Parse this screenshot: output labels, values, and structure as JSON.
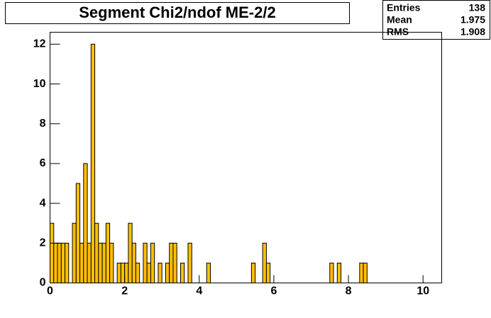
{
  "chart_data": {
    "type": "histogram",
    "title": "Segment Chi2/ndof ME-2/2",
    "stats": {
      "labels": [
        "Entries",
        "Mean",
        "RMS"
      ],
      "values": [
        138,
        1.975,
        1.908
      ]
    },
    "bins": [
      0,
      0.1,
      0.2,
      0.3,
      0.4,
      0.5,
      0.6,
      0.7,
      0.8,
      0.9,
      1,
      1.1,
      1.2,
      1.3,
      1.4,
      1.5,
      1.6,
      1.7,
      1.8,
      1.9,
      2,
      2.1,
      2.2,
      2.3,
      2.4,
      2.5,
      2.6,
      2.7,
      2.8,
      2.9,
      3,
      3.1,
      3.2,
      3.3,
      3.4,
      3.5,
      3.6,
      3.7,
      3.8,
      3.9,
      4,
      4.1,
      4.2,
      4.3,
      4.4,
      4.5,
      4.6,
      4.7,
      4.8,
      4.9,
      5,
      5.1,
      5.2,
      5.3,
      5.4,
      5.5,
      5.6,
      5.7,
      5.8,
      5.9,
      6,
      6.1,
      6.2,
      6.3,
      6.4,
      6.5,
      6.6,
      6.7,
      6.8,
      6.9,
      7,
      7.1,
      7.2,
      7.3,
      7.4,
      7.5,
      7.6,
      7.7,
      7.8,
      7.9,
      8,
      8.1,
      8.2,
      8.3,
      8.4,
      8.5,
      8.6,
      8.7,
      8.8,
      8.9,
      9,
      9.1,
      9.2,
      9.3,
      9.4,
      9.5,
      9.6,
      9.7,
      9.8,
      9.9,
      10,
      10.1,
      10.2,
      10.3,
      10.4,
      10.5
    ],
    "counts": [
      3,
      2,
      2,
      2,
      2,
      0,
      3,
      5,
      2,
      6,
      2,
      12,
      3,
      2,
      2,
      3,
      2,
      0,
      1,
      1,
      1,
      3,
      2,
      1,
      0,
      2,
      1,
      2,
      0,
      1,
      0,
      1,
      2,
      2,
      0,
      1,
      0,
      2,
      0,
      0,
      0,
      0,
      1,
      0,
      0,
      0,
      0,
      0,
      0,
      0,
      0,
      0,
      0,
      0,
      1,
      0,
      0,
      2,
      1,
      0,
      0,
      0,
      0,
      0,
      0,
      0,
      0,
      0,
      0,
      0,
      0,
      0,
      0,
      0,
      0,
      1,
      0,
      1,
      0,
      0,
      0,
      0,
      0,
      1,
      1,
      0,
      0,
      0,
      0,
      0,
      0,
      0,
      0,
      0,
      0,
      0,
      0,
      0,
      0,
      0,
      0,
      0,
      0,
      0,
      0
    ],
    "color": "#ffc000",
    "xlim": [
      0,
      10.5
    ],
    "ylim": [
      0,
      12.6
    ],
    "xticks": [
      0,
      2,
      4,
      6,
      8,
      10
    ],
    "yticks": [
      0,
      2,
      4,
      6,
      8,
      10,
      12
    ]
  }
}
